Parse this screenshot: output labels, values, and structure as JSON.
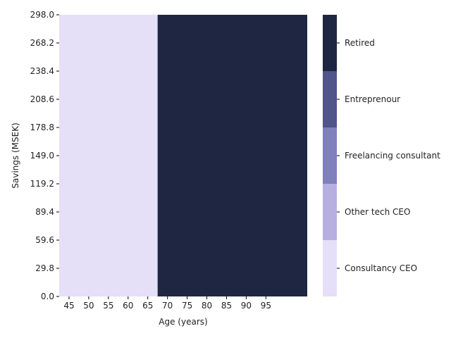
{
  "chart_data": {
    "type": "heatmap",
    "xlabel": "Age (years)",
    "ylabel": "Savings (MSEK)",
    "x_ticks": [
      "45",
      "50",
      "55",
      "60",
      "65",
      "70",
      "75",
      "80",
      "85",
      "90",
      "95"
    ],
    "y_ticks": [
      "0.0",
      "29.8",
      "59.6",
      "89.4",
      "119.2",
      "149.0",
      "178.8",
      "208.6",
      "238.4",
      "268.2",
      "298.0"
    ],
    "xlim": [
      43,
      106
    ],
    "ylim": [
      0,
      298
    ],
    "regions": [
      {
        "x_start": 43,
        "x_end": 68,
        "y_start": 0,
        "y_end": 298,
        "category": "Consultancy CEO"
      },
      {
        "x_start": 68,
        "x_end": 106,
        "y_start": 0,
        "y_end": 298,
        "category": "Retired"
      }
    ],
    "colorbar": {
      "categories": [
        {
          "label": "Consultancy CEO",
          "color": "#e5dff8"
        },
        {
          "label": "Other tech CEO",
          "color": "#b7afe2"
        },
        {
          "label": "Freelancing consultant",
          "color": "#7f80bc"
        },
        {
          "label": "Entreprenour",
          "color": "#4f5588"
        },
        {
          "label": "Retired",
          "color": "#1e2642"
        }
      ]
    }
  }
}
